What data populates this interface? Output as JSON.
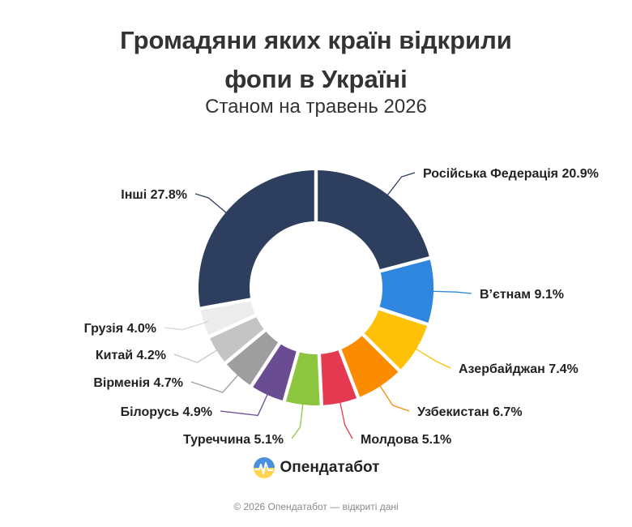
{
  "title_line1": "Громадяни яких країн відкрили",
  "title_line2": "фопи в Україні",
  "subtitle": "Станом на травень 2026",
  "brand": {
    "name": "Опендатабот",
    "icon": "opendatabot-logo-icon"
  },
  "footer": "© 2026 Опендатабот — відкриті дані",
  "chart_data": {
    "type": "pie",
    "variant": "donut",
    "labels": [
      "Російська Федерація",
      "В’єтнам",
      "Азербайджан",
      "Узбекистан",
      "Молдова",
      "Туреччина",
      "Білорусь",
      "Вірменія",
      "Китай",
      "Грузія",
      "Інші"
    ],
    "values": [
      20.9,
      9.1,
      7.4,
      6.7,
      5.1,
      5.1,
      4.9,
      4.7,
      4.2,
      4.0,
      27.8
    ],
    "display": [
      "Російська Федерація 20.9%",
      "В’єтнам 9.1%",
      "Азербайджан 7.4%",
      "Узбекистан 6.7%",
      "Молдова 5.1%",
      "Туреччина 5.1%",
      "Білорусь 4.9%",
      "Вірменія 4.7%",
      "Китай 4.2%",
      "Грузія 4.0%",
      "Інші 27.8%"
    ],
    "colors": [
      "#2d3e5e",
      "#2e86de",
      "#ffc107",
      "#fb8c00",
      "#e53950",
      "#8cc63f",
      "#6a4c93",
      "#9e9e9e",
      "#c4c4c4",
      "#ececec",
      "#2d3e5e"
    ],
    "unit": "%"
  }
}
